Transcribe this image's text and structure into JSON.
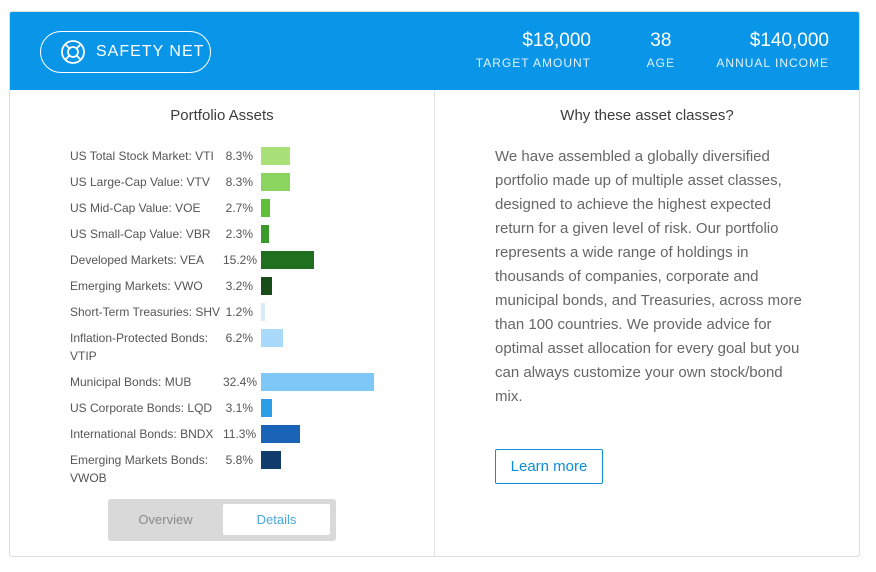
{
  "header": {
    "goal_label": "SAFETY NET",
    "stats": [
      {
        "value": "$18,000",
        "label": "TARGET AMOUNT"
      },
      {
        "value": "38",
        "label": "AGE"
      },
      {
        "value": "$140,000",
        "label": "ANNUAL INCOME"
      }
    ],
    "colors": {
      "header_bg": "#0996e8"
    }
  },
  "portfolio": {
    "title": "Portfolio Assets",
    "assets": [
      {
        "name": "US Total Stock Market: VTI",
        "pct_label": "8.3%",
        "pct": 8.3,
        "color": "#a9e07a"
      },
      {
        "name": "US Large-Cap Value: VTV",
        "pct_label": "8.3%",
        "pct": 8.3,
        "color": "#8bd460"
      },
      {
        "name": "US Mid-Cap Value: VOE",
        "pct_label": "2.7%",
        "pct": 2.7,
        "color": "#5fbf36"
      },
      {
        "name": "US Small-Cap Value: VBR",
        "pct_label": "2.3%",
        "pct": 2.3,
        "color": "#3c9a2a"
      },
      {
        "name": "Developed Markets: VEA",
        "pct_label": "15.2%",
        "pct": 15.2,
        "color": "#1f6f1e"
      },
      {
        "name": "Emerging Markets: VWO",
        "pct_label": "3.2%",
        "pct": 3.2,
        "color": "#184d1a"
      },
      {
        "name": "Short-Term Treasuries: SHV",
        "pct_label": "1.2%",
        "pct": 1.2,
        "color": "#d7ecfa"
      },
      {
        "name": "Inflation-Protected Bonds: VTIP",
        "pct_label": "6.2%",
        "pct": 6.2,
        "color": "#a9d9fb"
      },
      {
        "name": "Municipal Bonds: MUB",
        "pct_label": "32.4%",
        "pct": 32.4,
        "color": "#7dc8f7"
      },
      {
        "name": "US Corporate Bonds: LQD",
        "pct_label": "3.1%",
        "pct": 3.1,
        "color": "#2a9ee6"
      },
      {
        "name": "International Bonds: BNDX",
        "pct_label": "11.3%",
        "pct": 11.3,
        "color": "#1a64b8"
      },
      {
        "name": "Emerging Markets Bonds: VWOB",
        "pct_label": "5.8%",
        "pct": 5.8,
        "color": "#123b6e"
      }
    ],
    "toggle": {
      "overview": "Overview",
      "details": "Details",
      "selected": "Details"
    }
  },
  "explanation": {
    "title": "Why these asset classes?",
    "body": "We have assembled a globally diversified portfolio made up of multiple asset classes, designed to achieve the highest expected return for a given level of risk. Our portfolio represents a wide range of holdings in thousands of companies, corporate and municipal bonds, and Treasuries, across more than 100 countries. We provide advice for optimal asset allocation for every goal but you can always customize your own stock/bond mix.",
    "learn_more": "Learn more"
  }
}
